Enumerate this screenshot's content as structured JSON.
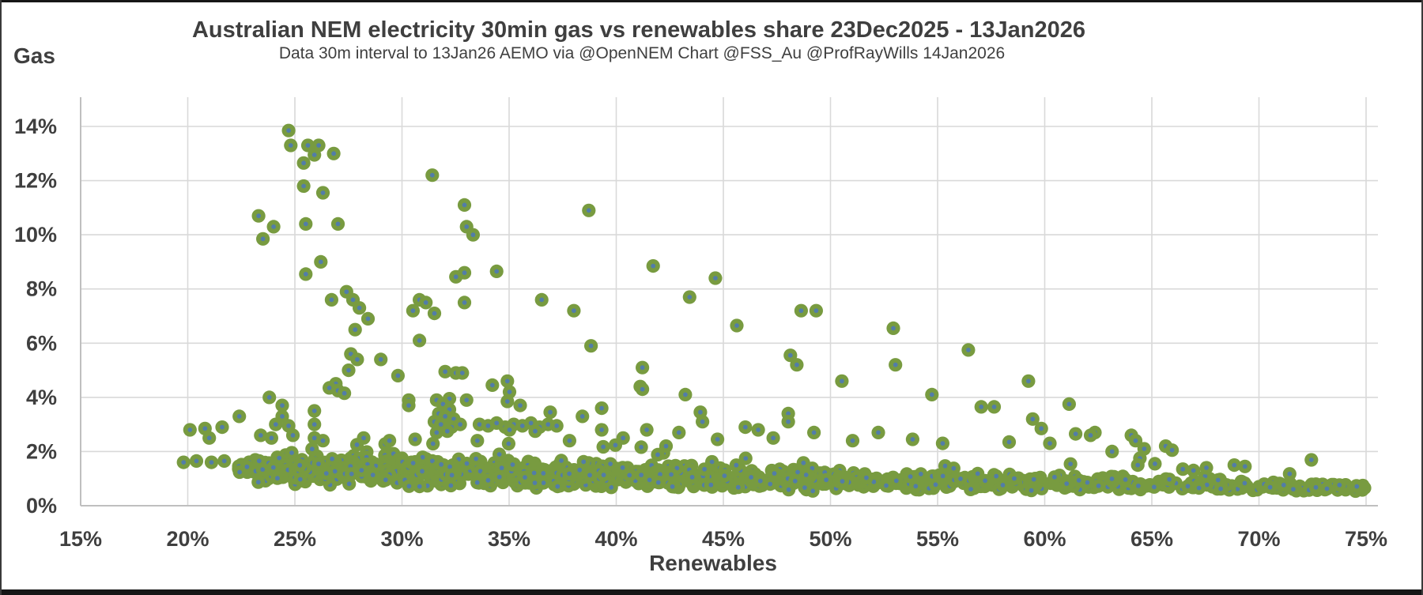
{
  "header": {
    "title": "Australian NEM electricity 30min gas vs renewables share 23Dec2025 - 13Jan2026",
    "subtitle": "Data 30m interval to 13Jan26  AEMO via @OpenNEM Chart @FSS_Au @ProfRayWills 14Jan2026"
  },
  "style": {
    "background": "#ffffff",
    "frame_border": "#161616",
    "text_color": "#3F3F3F",
    "gridline_color": "#D9D9D9",
    "axis_line_color": "#BFBFBF",
    "marker_color": "#789B40",
    "marker_center_color": "#527DA8"
  },
  "chart_data": {
    "type": "scatter",
    "title": "Australian NEM electricity 30min gas vs renewables share 23Dec2025 - 13Jan2026",
    "subtitle": "Data 30m interval to 13Jan26  AEMO via @OpenNEM Chart @FSS_Au @ProfRayWills 14Jan2026",
    "xlabel": "Renewables",
    "ylabel": "Gas",
    "xlim": [
      15,
      75.5
    ],
    "ylim": [
      0,
      15.08
    ],
    "grid": true,
    "legend": "none",
    "xtick_values": [
      15,
      20,
      25,
      30,
      35,
      40,
      45,
      50,
      55,
      60,
      65,
      70,
      75
    ],
    "xtick_labels": [
      "15%",
      "20%",
      "25%",
      "30%",
      "35%",
      "40%",
      "45%",
      "50%",
      "55%",
      "60%",
      "65%",
      "70%",
      "75%"
    ],
    "ytick_values": [
      0,
      2,
      4,
      6,
      8,
      10,
      12,
      14
    ],
    "ytick_labels": [
      "0%",
      "2%",
      "4%",
      "6%",
      "8%",
      "10%",
      "12%",
      "14%"
    ],
    "marker": {
      "radius_px": 8.6,
      "center_dot_radius_px": 2.9
    },
    "points": [
      [
        24.7,
        13.85
      ],
      [
        24.8,
        13.3
      ],
      [
        25.6,
        13.3
      ],
      [
        26.1,
        13.3
      ],
      [
        25.9,
        12.95
      ],
      [
        26.8,
        13.0
      ],
      [
        25.4,
        12.65
      ],
      [
        25.4,
        11.8
      ],
      [
        26.3,
        11.55
      ],
      [
        31.4,
        12.2
      ],
      [
        32.9,
        11.1
      ],
      [
        38.7,
        10.9
      ],
      [
        23.3,
        10.7
      ],
      [
        24.0,
        10.3
      ],
      [
        23.5,
        9.85
      ],
      [
        25.5,
        10.4
      ],
      [
        27.0,
        10.4
      ],
      [
        33.0,
        10.3
      ],
      [
        33.3,
        10.0
      ],
      [
        26.2,
        9.0
      ],
      [
        25.5,
        8.55
      ],
      [
        41.7,
        8.85
      ],
      [
        34.4,
        8.65
      ],
      [
        32.9,
        8.6
      ],
      [
        32.5,
        8.45
      ],
      [
        44.6,
        8.4
      ],
      [
        43.4,
        7.7
      ],
      [
        27.4,
        7.9
      ],
      [
        26.7,
        7.6
      ],
      [
        27.7,
        7.6
      ],
      [
        30.8,
        7.6
      ],
      [
        36.5,
        7.6
      ],
      [
        31.1,
        7.5
      ],
      [
        32.9,
        7.5
      ],
      [
        28.0,
        7.3
      ],
      [
        30.5,
        7.2
      ],
      [
        38.0,
        7.2
      ],
      [
        48.6,
        7.2
      ],
      [
        49.3,
        7.2
      ],
      [
        31.5,
        7.1
      ],
      [
        28.4,
        6.9
      ],
      [
        45.6,
        6.65
      ],
      [
        52.9,
        6.55
      ],
      [
        27.8,
        6.5
      ],
      [
        30.8,
        6.1
      ],
      [
        38.8,
        5.9
      ],
      [
        56.4,
        5.75
      ],
      [
        27.6,
        5.6
      ],
      [
        48.1,
        5.55
      ],
      [
        27.9,
        5.4
      ],
      [
        29.0,
        5.4
      ],
      [
        48.4,
        5.2
      ],
      [
        53.0,
        5.2
      ],
      [
        41.2,
        5.1
      ],
      [
        27.5,
        5.0
      ],
      [
        32.0,
        4.95
      ],
      [
        32.5,
        4.9
      ],
      [
        32.8,
        4.9
      ],
      [
        29.8,
        4.8
      ],
      [
        34.9,
        4.6
      ],
      [
        50.5,
        4.6
      ],
      [
        59.2,
        4.6
      ],
      [
        34.2,
        4.45
      ],
      [
        41.1,
        4.4
      ],
      [
        26.9,
        4.5
      ],
      [
        26.6,
        4.35
      ],
      [
        41.2,
        4.3
      ],
      [
        27.0,
        4.25
      ],
      [
        35.0,
        4.2
      ],
      [
        27.3,
        4.15
      ],
      [
        43.2,
        4.1
      ],
      [
        54.7,
        4.1
      ],
      [
        23.8,
        4.0
      ],
      [
        32.2,
        3.95
      ],
      [
        33.0,
        3.9
      ],
      [
        30.3,
        3.9
      ],
      [
        34.9,
        3.85
      ],
      [
        61.1,
        3.75
      ],
      [
        24.4,
        3.7
      ],
      [
        30.3,
        3.7
      ],
      [
        35.5,
        3.7
      ],
      [
        57.0,
        3.65
      ],
      [
        57.6,
        3.65
      ],
      [
        39.3,
        3.6
      ],
      [
        32.0,
        3.6
      ],
      [
        31.6,
        3.9
      ],
      [
        31.9,
        3.75
      ],
      [
        32.2,
        3.55
      ],
      [
        31.7,
        3.4
      ],
      [
        32.0,
        3.3
      ],
      [
        32.4,
        3.2
      ],
      [
        31.5,
        3.1
      ],
      [
        31.8,
        3.0
      ],
      [
        32.3,
        2.9
      ],
      [
        32.7,
        3.0
      ],
      [
        32.1,
        2.75
      ],
      [
        31.6,
        2.7
      ],
      [
        36.9,
        3.45
      ],
      [
        43.9,
        3.45
      ],
      [
        48.0,
        3.4
      ],
      [
        38.4,
        3.3
      ],
      [
        22.4,
        3.3
      ],
      [
        24.4,
        3.3
      ],
      [
        25.9,
        3.5
      ],
      [
        59.4,
        3.2
      ],
      [
        44.0,
        3.1
      ],
      [
        48.0,
        3.1
      ],
      [
        24.1,
        3.0
      ],
      [
        24.7,
        2.95
      ],
      [
        25.9,
        3.0
      ],
      [
        33.6,
        3.0
      ],
      [
        34.0,
        2.95
      ],
      [
        34.4,
        3.05
      ],
      [
        34.8,
        2.9
      ],
      [
        35.2,
        3.0
      ],
      [
        35.6,
        2.95
      ],
      [
        36.0,
        3.05
      ],
      [
        36.4,
        2.9
      ],
      [
        36.8,
        3.0
      ],
      [
        37.2,
        2.95
      ],
      [
        35.0,
        2.8
      ],
      [
        36.2,
        2.75
      ],
      [
        46.0,
        2.9
      ],
      [
        46.6,
        2.8
      ],
      [
        20.1,
        2.8
      ],
      [
        20.8,
        2.85
      ],
      [
        21.6,
        2.9
      ],
      [
        21.0,
        2.5
      ],
      [
        59.8,
        2.85
      ],
      [
        39.3,
        2.8
      ],
      [
        41.4,
        2.8
      ],
      [
        49.2,
        2.7
      ],
      [
        52.2,
        2.7
      ],
      [
        42.9,
        2.7
      ],
      [
        62.3,
        2.7
      ],
      [
        61.4,
        2.65
      ],
      [
        62.1,
        2.6
      ],
      [
        64.0,
        2.6
      ],
      [
        25.9,
        2.5
      ],
      [
        64.2,
        2.4
      ],
      [
        42.3,
        2.2
      ],
      [
        65.6,
        2.2
      ],
      [
        65.9,
        2.05
      ],
      [
        64.6,
        2.1
      ],
      [
        63.1,
        2.0
      ],
      [
        64.4,
        1.75
      ],
      [
        64.3,
        1.5
      ],
      [
        65.1,
        1.55
      ],
      [
        19.8,
        1.6
      ],
      [
        20.4,
        1.65
      ],
      [
        21.1,
        1.6
      ],
      [
        21.7,
        1.65
      ],
      [
        23.4,
        2.6
      ],
      [
        23.9,
        2.5
      ],
      [
        24.9,
        2.6
      ],
      [
        26.3,
        2.4
      ],
      [
        28.2,
        2.5
      ],
      [
        29.4,
        2.4
      ],
      [
        30.6,
        2.45
      ],
      [
        33.5,
        2.4
      ],
      [
        37.8,
        2.4
      ],
      [
        40.3,
        2.5
      ],
      [
        44.7,
        2.45
      ],
      [
        47.3,
        2.5
      ],
      [
        51.0,
        2.4
      ],
      [
        53.8,
        2.45
      ],
      [
        55.2,
        2.3
      ],
      [
        58.3,
        2.35
      ],
      [
        60.2,
        2.3
      ],
      [
        66.4,
        1.35
      ],
      [
        66.9,
        1.3
      ],
      [
        67.5,
        1.4
      ],
      [
        68.8,
        1.5
      ],
      [
        69.3,
        1.45
      ]
    ],
    "band_segments": [
      [
        22.3,
        25,
        55,
        1.35,
        1.3,
        0.5,
        0.55
      ],
      [
        25,
        30,
        135,
        1.3,
        1.25,
        0.6,
        0.6
      ],
      [
        30,
        35,
        145,
        1.25,
        1.2,
        0.6,
        0.6
      ],
      [
        35,
        40,
        135,
        1.2,
        1.1,
        0.55,
        0.55
      ],
      [
        40,
        45,
        120,
        1.1,
        1.05,
        0.5,
        0.5
      ],
      [
        45,
        50,
        100,
        1.05,
        0.95,
        0.45,
        0.45
      ],
      [
        50,
        55,
        85,
        0.95,
        0.9,
        0.4,
        0.4
      ],
      [
        55,
        60,
        75,
        0.9,
        0.85,
        0.35,
        0.35
      ],
      [
        60,
        65,
        65,
        0.85,
        0.8,
        0.3,
        0.3
      ],
      [
        65,
        70,
        55,
        0.8,
        0.72,
        0.25,
        0.22
      ],
      [
        70,
        74.9,
        50,
        0.72,
        0.68,
        0.2,
        0.15
      ]
    ],
    "band_fringe_probability": 0.05,
    "band_fringe_max_extra": 0.9,
    "band_y_min": 0.4,
    "seed": 42
  }
}
